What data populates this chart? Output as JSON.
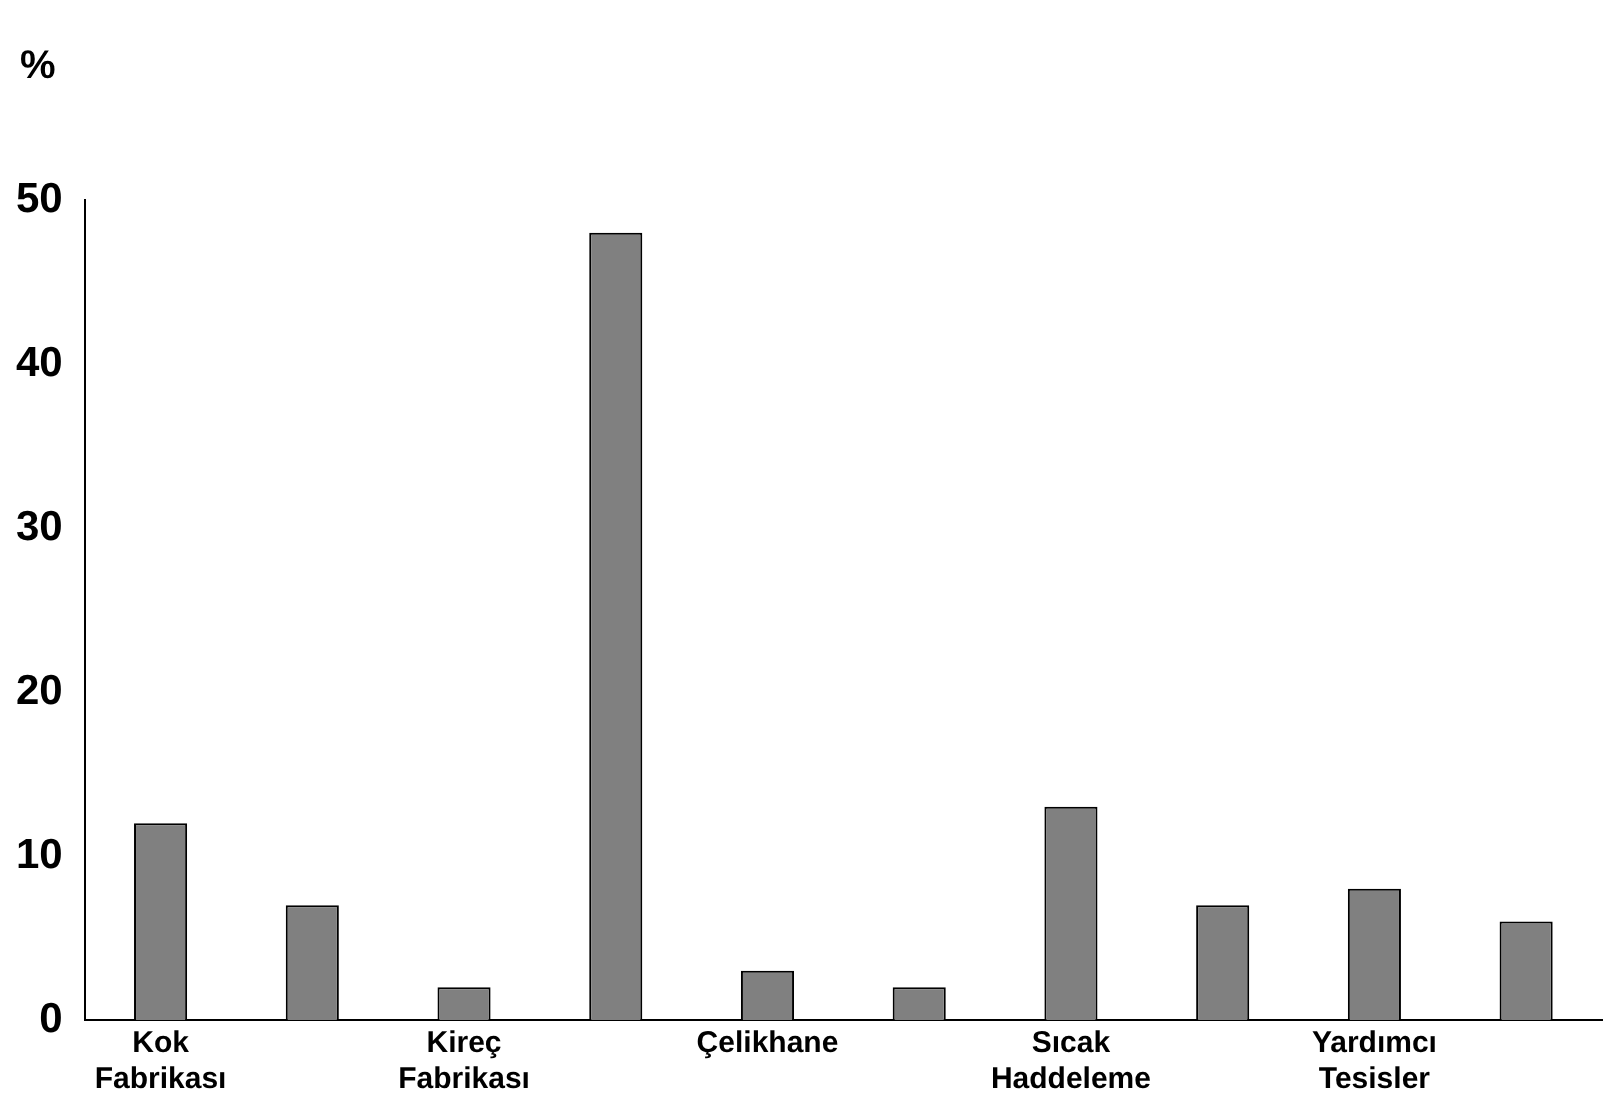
{
  "chart_data": {
    "type": "bar",
    "ylabel": "%",
    "categories": [
      "Kok Fabrikası",
      null,
      "Kireç Fabrikası",
      null,
      "Çelikhane",
      null,
      "Sıcak Haddeleme",
      null,
      "Yardımcı Tesisler",
      null
    ],
    "values": [
      12,
      7,
      2,
      48,
      3,
      2,
      13,
      7,
      8,
      6
    ],
    "color": "#808080",
    "ylim": [
      0,
      50
    ],
    "yticks": [
      0,
      10,
      20,
      30,
      40,
      50
    ],
    "grid": false
  }
}
